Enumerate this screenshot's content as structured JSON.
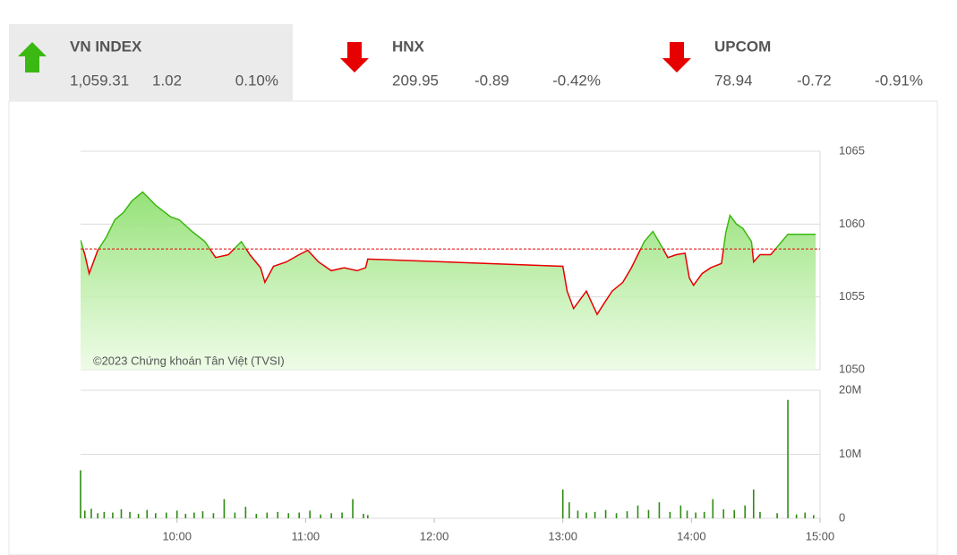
{
  "tickers": [
    {
      "name": "VN INDEX",
      "value": "1,059.31",
      "change": "1.02",
      "percent": "0.10%",
      "color": "#3cb813",
      "direction": "up",
      "selected": true
    },
    {
      "name": "HNX",
      "value": "209.95",
      "change": "-0.89",
      "percent": "-0.42%",
      "color": "#e60000",
      "direction": "down",
      "selected": false
    },
    {
      "name": "UPCOM",
      "value": "78.94",
      "change": "-0.72",
      "percent": "-0.91%",
      "color": "#e60000",
      "direction": "down",
      "selected": false
    }
  ],
  "chart_data": [
    {
      "type": "line",
      "watermark": "©2023 Chứng khoán Tân Việt (TVSI)",
      "x": [
        555,
        557,
        559,
        563,
        567,
        571,
        575,
        579,
        584,
        590,
        597,
        601,
        607,
        613,
        618,
        624,
        630,
        634,
        639,
        641,
        645,
        651,
        657,
        661,
        666,
        672,
        678,
        684,
        688,
        689,
        780,
        782,
        785,
        788,
        791,
        796,
        799,
        803,
        808,
        812,
        815,
        818,
        822,
        826,
        829,
        833,
        837,
        839,
        841,
        845,
        849,
        854,
        856,
        858,
        861,
        864,
        868,
        869,
        872,
        877,
        885,
        898
      ],
      "values": [
        1058.9,
        1057.9,
        1056.6,
        1058.2,
        1059.1,
        1060.3,
        1060.8,
        1061.6,
        1062.2,
        1061.3,
        1060.5,
        1060.3,
        1059.5,
        1058.8,
        1057.7,
        1057.9,
        1058.8,
        1057.9,
        1057.0,
        1056.0,
        1057.1,
        1057.4,
        1057.9,
        1058.2,
        1057.4,
        1056.8,
        1057.0,
        1056.8,
        1057.0,
        1057.6,
        1057.1,
        1055.4,
        1054.2,
        1054.8,
        1055.4,
        1053.8,
        1054.5,
        1055.4,
        1056.0,
        1057.0,
        1057.9,
        1058.8,
        1059.5,
        1058.5,
        1057.7,
        1057.9,
        1058.0,
        1056.3,
        1055.8,
        1056.6,
        1057.0,
        1057.3,
        1059.4,
        1060.6,
        1060.0,
        1059.7,
        1058.8,
        1057.4,
        1057.9,
        1057.9,
        1059.3,
        1059.3
      ],
      "reference": 1058.29,
      "up_color": "#3cb813",
      "down_color": "#e60000",
      "area_color": "#9de884",
      "xlim": [
        555,
        900
      ],
      "ylim": [
        1050,
        1065
      ],
      "yticks": [
        1050,
        1055,
        1060,
        1065
      ],
      "grid": true
    },
    {
      "type": "bar",
      "color": "#2e8b12",
      "x": [
        555,
        557,
        560,
        563,
        566,
        570,
        574,
        578,
        582,
        586,
        590,
        595,
        600,
        604,
        608,
        612,
        617,
        622,
        627,
        632,
        637,
        642,
        647,
        652,
        657,
        662,
        667,
        672,
        677,
        682,
        687,
        689,
        780,
        783,
        787,
        791,
        795,
        800,
        805,
        810,
        815,
        820,
        825,
        830,
        835,
        838,
        842,
        846,
        850,
        855,
        860,
        865,
        869,
        872,
        880,
        885,
        889,
        893,
        897
      ],
      "values": [
        7500000,
        1200000,
        1500000,
        800000,
        1000000,
        900000,
        1400000,
        1000000,
        700000,
        1300000,
        800000,
        900000,
        1200000,
        700000,
        900000,
        1100000,
        800000,
        3000000,
        900000,
        1800000,
        700000,
        900000,
        1000000,
        800000,
        900000,
        1200000,
        600000,
        800000,
        900000,
        3000000,
        700000,
        500000,
        4500000,
        2500000,
        1200000,
        900000,
        1000000,
        1300000,
        800000,
        1100000,
        2000000,
        1300000,
        2500000,
        1000000,
        2000000,
        1200000,
        900000,
        1000000,
        3000000,
        1400000,
        1300000,
        2000000,
        4500000,
        1000000,
        800000,
        18500000,
        600000,
        900000,
        500000
      ],
      "xlim": [
        555,
        900
      ],
      "ylim": [
        0,
        20000000
      ],
      "yticks": [
        0,
        {
          "value": 10000000,
          "label": "10M"
        },
        {
          "value": 20000000,
          "label": "20M"
        }
      ],
      "xticks": [
        {
          "value": 600,
          "label": "10:00"
        },
        {
          "value": 660,
          "label": "11:00"
        },
        {
          "value": 720,
          "label": "12:00"
        },
        {
          "value": 780,
          "label": "13:00"
        },
        {
          "value": 840,
          "label": "14:00"
        },
        {
          "value": 900,
          "label": "15:00"
        }
      ],
      "grid": true
    }
  ]
}
